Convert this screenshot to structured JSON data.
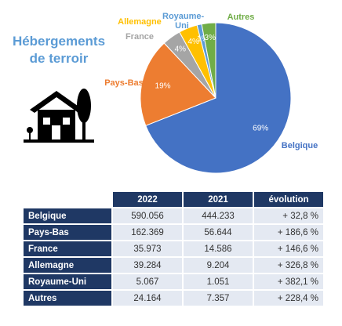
{
  "chart_data": {
    "type": "pie",
    "title": "Hébergements de terroir",
    "categories": [
      "Belgique",
      "Pays-Bas",
      "France",
      "Allemagne",
      "Royaume-Uni",
      "Autres"
    ],
    "values": [
      69,
      19,
      4,
      4,
      1,
      3
    ],
    "value_labels": [
      "69%",
      "19%",
      "4%",
      "4%",
      "1%",
      "3%"
    ],
    "colors": [
      "#4472c4",
      "#ed7d31",
      "#a5a5a5",
      "#ffc000",
      "#5b9bd5",
      "#70ad47"
    ]
  },
  "table": {
    "columns": [
      "2022",
      "2021",
      "évolution"
    ],
    "rows": [
      [
        "Belgique",
        "590.056",
        "444.233",
        "+ 32,8 %"
      ],
      [
        "Pays-Bas",
        "162.369",
        "56.644",
        "+ 186,6 %"
      ],
      [
        "France",
        "35.973",
        "14.586",
        "+ 146,6 %"
      ],
      [
        "Allemagne",
        "39.284",
        "9.204",
        "+ 326,8 %"
      ],
      [
        "Royaume-Uni",
        "5.067",
        "1.051",
        "+ 382,1 %"
      ],
      [
        "Autres",
        "24.164",
        "7.357",
        "+ 228,4 %"
      ]
    ]
  }
}
